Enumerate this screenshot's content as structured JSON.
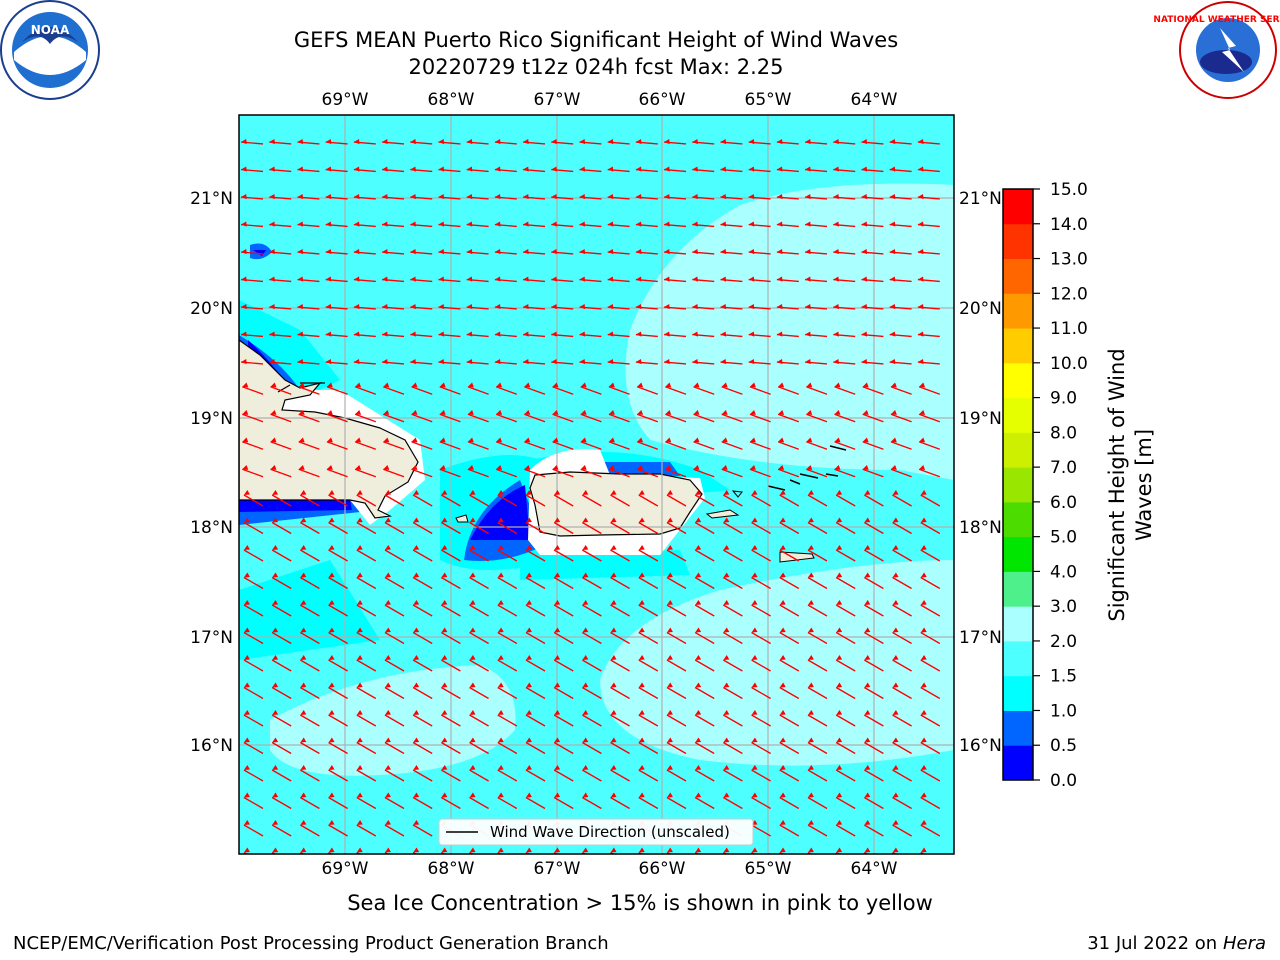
{
  "header": {
    "title_line1": "GEFS MEAN Puerto Rico Significant Height of Wind Waves",
    "title_line2": "20220729 t12z 024h fcst   Max: 2.25"
  },
  "logos": {
    "left": "NOAA",
    "right": "NATIONAL WEATHER SERVICE"
  },
  "map": {
    "lon_labels": [
      "69°W",
      "68°W",
      "67°W",
      "66°W",
      "65°W",
      "64°W"
    ],
    "lat_labels": [
      "21°N",
      "20°N",
      "19°N",
      "18°N",
      "17°N",
      "16°N"
    ],
    "legend_label": "Wind Wave Direction (unscaled)",
    "arrow_color": "#ff0000",
    "land_color": "#efeddc"
  },
  "colorbar": {
    "label_line1": "Significant Height of Wind",
    "label_line2": "Waves [m]",
    "ticks": [
      "0.0",
      "0.5",
      "1.0",
      "1.5",
      "2.0",
      "3.0",
      "4.0",
      "5.0",
      "6.0",
      "7.0",
      "8.0",
      "9.0",
      "10.0",
      "11.0",
      "12.0",
      "13.0",
      "14.0",
      "15.0"
    ],
    "colors": [
      "#0000ff",
      "#0066ff",
      "#00ffff",
      "#4dffff",
      "#aaffff",
      "#4df08a",
      "#00e600",
      "#4ddc00",
      "#99e600",
      "#ccf000",
      "#e6ff00",
      "#ffff00",
      "#ffcc00",
      "#ff9900",
      "#ff6600",
      "#ff3300",
      "#ff0000"
    ]
  },
  "caption": "Sea Ice Concentration > 15% is shown in pink to yellow",
  "footer": {
    "left": "NCEP/EMC/Verification Post Processing Product Generation Branch",
    "right_date": "31 Jul 2022 on ",
    "right_host": "Hera"
  }
}
